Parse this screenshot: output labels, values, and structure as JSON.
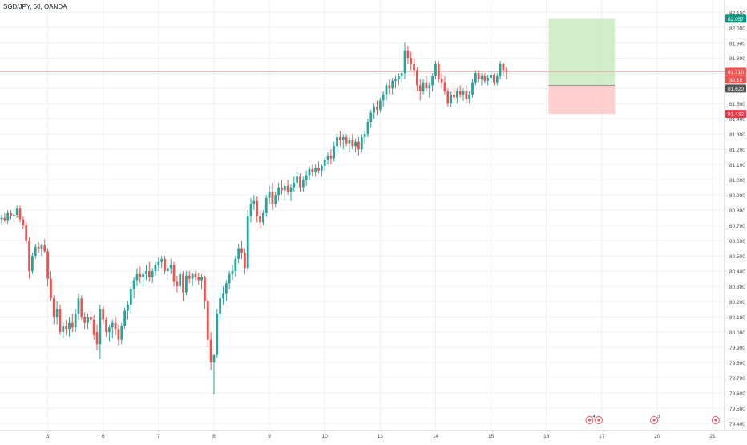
{
  "header": {
    "title": "SGD/JPY, 60, OANDA"
  },
  "colors": {
    "up": "#26a69a",
    "down": "#ef5350",
    "grid": "#eef0f3",
    "axis_text": "#4a4a4a",
    "current_line": "#f3a3a3",
    "target_fill": "#cdebc4",
    "stop_fill": "#ffc9c9",
    "tag_target": "#089981",
    "tag_price": "#ef5350",
    "tag_entry": "#555555",
    "tag_stop": "#f23645",
    "event_marker": "#f7525f"
  },
  "chart_data": {
    "type": "candlestick",
    "title": "SGD/JPY, 60, OANDA",
    "symbol": "SGD/JPY",
    "interval": "60",
    "source": "OANDA",
    "ylim": [
      79.4,
      82.1
    ],
    "yticks": [
      79.4,
      79.5,
      79.6,
      79.7,
      79.8,
      79.9,
      80.0,
      80.1,
      80.2,
      80.3,
      80.4,
      80.5,
      80.6,
      80.7,
      80.8,
      80.9,
      81.0,
      81.1,
      81.2,
      81.3,
      81.4,
      81.5,
      81.6,
      81.7,
      81.8,
      81.9,
      82.0,
      82.1
    ],
    "ytick_labels": [
      "79.400",
      "79.500",
      "79.600",
      "79.700",
      "79.800",
      "79.900",
      "80.000",
      "80.100",
      "80.200",
      "80.300",
      "80.400",
      "80.500",
      "80.600",
      "80.700",
      "80.800",
      "80.900",
      "81.000",
      "81.100",
      "81.200",
      "81.300",
      "81.400",
      "81.500",
      "81.600",
      "81.700",
      "81.800",
      "81.900",
      "82.000",
      "82.100"
    ],
    "xticks": [
      {
        "label": "3",
        "bar": 15
      },
      {
        "label": "6",
        "bar": 33
      },
      {
        "label": "7",
        "bar": 51
      },
      {
        "label": "8",
        "bar": 69
      },
      {
        "label": "9",
        "bar": 87
      },
      {
        "label": "10",
        "bar": 105
      },
      {
        "label": "13",
        "bar": 123
      },
      {
        "label": "14",
        "bar": 141
      },
      {
        "label": "15",
        "bar": 159
      },
      {
        "label": "16",
        "bar": 177
      },
      {
        "label": "17",
        "bar": 195
      },
      {
        "label": "20",
        "bar": 213
      },
      {
        "label": "21",
        "bar": 231
      }
    ],
    "total_slots": 235,
    "candles": [
      [
        80.74,
        80.77,
        80.71,
        80.75
      ],
      [
        80.75,
        80.78,
        80.72,
        80.73
      ],
      [
        80.73,
        80.8,
        80.71,
        80.78
      ],
      [
        80.78,
        80.8,
        80.74,
        80.76
      ],
      [
        80.76,
        80.78,
        80.72,
        80.77
      ],
      [
        80.77,
        80.83,
        80.75,
        80.81
      ],
      [
        80.81,
        80.83,
        80.72,
        80.74
      ],
      [
        80.74,
        80.76,
        80.68,
        80.7
      ],
      [
        80.7,
        80.72,
        80.58,
        80.6
      ],
      [
        80.6,
        80.62,
        80.35,
        80.4
      ],
      [
        80.4,
        80.52,
        80.38,
        80.5
      ],
      [
        80.5,
        80.58,
        80.48,
        80.56
      ],
      [
        80.56,
        80.59,
        80.52,
        80.55
      ],
      [
        80.55,
        80.58,
        80.5,
        80.57
      ],
      [
        80.57,
        80.61,
        80.52,
        80.53
      ],
      [
        80.53,
        80.55,
        80.3,
        80.35
      ],
      [
        80.35,
        80.4,
        80.2,
        80.22
      ],
      [
        80.22,
        80.24,
        80.05,
        80.1
      ],
      [
        80.1,
        80.2,
        80.05,
        80.15
      ],
      [
        80.15,
        80.18,
        79.98,
        80.0
      ],
      [
        80.0,
        80.06,
        79.96,
        80.04
      ],
      [
        80.04,
        80.08,
        79.98,
        80.02
      ],
      [
        80.02,
        80.1,
        79.97,
        80.06
      ],
      [
        80.06,
        80.12,
        80.0,
        80.03
      ],
      [
        80.03,
        80.15,
        80.0,
        80.12
      ],
      [
        80.12,
        80.25,
        80.08,
        80.22
      ],
      [
        80.22,
        80.24,
        80.08,
        80.1
      ],
      [
        80.1,
        80.13,
        80.02,
        80.06
      ],
      [
        80.06,
        80.12,
        80.02,
        80.1
      ],
      [
        80.1,
        80.14,
        80.05,
        80.08
      ],
      [
        80.08,
        80.11,
        79.95,
        79.98
      ],
      [
        80.0,
        80.05,
        79.88,
        79.92
      ],
      [
        79.92,
        80.18,
        79.82,
        80.15
      ],
      [
        80.15,
        80.17,
        80.05,
        80.08
      ],
      [
        80.08,
        80.1,
        79.97,
        80.0
      ],
      [
        80.0,
        80.05,
        79.94,
        80.03
      ],
      [
        80.03,
        80.08,
        79.96,
        80.06
      ],
      [
        80.06,
        80.1,
        79.98,
        80.02
      ],
      [
        80.02,
        80.05,
        79.91,
        79.95
      ],
      [
        79.95,
        80.06,
        79.92,
        80.04
      ],
      [
        80.04,
        80.16,
        80.02,
        80.14
      ],
      [
        80.14,
        80.2,
        80.08,
        80.18
      ],
      [
        80.18,
        80.3,
        80.12,
        80.28
      ],
      [
        80.28,
        80.36,
        80.22,
        80.34
      ],
      [
        80.34,
        80.42,
        80.3,
        80.38
      ],
      [
        80.38,
        80.43,
        80.32,
        80.36
      ],
      [
        80.36,
        80.4,
        80.3,
        80.38
      ],
      [
        80.38,
        80.44,
        80.34,
        80.4
      ],
      [
        80.4,
        80.46,
        80.33,
        80.36
      ],
      [
        80.36,
        80.42,
        80.32,
        80.4
      ],
      [
        80.4,
        80.46,
        80.37,
        80.44
      ],
      [
        80.44,
        80.49,
        80.4,
        80.46
      ],
      [
        80.46,
        80.5,
        80.42,
        80.48
      ],
      [
        80.48,
        80.5,
        80.38,
        80.4
      ],
      [
        80.4,
        80.44,
        80.34,
        80.42
      ],
      [
        80.42,
        80.48,
        80.38,
        80.44
      ],
      [
        80.44,
        80.46,
        80.3,
        80.33
      ],
      [
        80.33,
        80.37,
        80.26,
        80.3
      ],
      [
        80.3,
        80.4,
        80.28,
        80.38
      ],
      [
        80.38,
        80.4,
        80.2,
        80.26
      ],
      [
        80.26,
        80.4,
        80.24,
        80.37
      ],
      [
        80.37,
        80.4,
        80.32,
        80.35
      ],
      [
        80.35,
        80.39,
        80.3,
        80.38
      ],
      [
        80.38,
        80.4,
        80.34,
        80.36
      ],
      [
        80.36,
        80.39,
        80.31,
        80.34
      ],
      [
        80.34,
        80.38,
        80.28,
        80.36
      ],
      [
        80.36,
        80.37,
        80.15,
        80.2
      ],
      [
        80.2,
        80.22,
        79.9,
        79.95
      ],
      [
        79.95,
        80.0,
        79.75,
        79.8
      ],
      [
        79.8,
        79.83,
        79.59,
        79.85
      ],
      [
        79.85,
        80.15,
        79.83,
        80.12
      ],
      [
        80.12,
        80.26,
        80.08,
        80.22
      ],
      [
        80.22,
        80.3,
        80.18,
        80.25
      ],
      [
        80.25,
        80.34,
        80.2,
        80.32
      ],
      [
        80.32,
        80.4,
        80.28,
        80.38
      ],
      [
        80.38,
        80.44,
        80.34,
        80.4
      ],
      [
        80.4,
        80.5,
        80.36,
        80.48
      ],
      [
        80.48,
        80.58,
        80.45,
        80.55
      ],
      [
        80.55,
        80.6,
        80.48,
        80.52
      ],
      [
        80.52,
        80.55,
        80.38,
        80.42
      ],
      [
        80.42,
        80.8,
        80.4,
        80.76
      ],
      [
        80.76,
        80.88,
        80.72,
        80.84
      ],
      [
        80.84,
        80.9,
        80.8,
        80.86
      ],
      [
        80.86,
        80.89,
        80.72,
        80.76
      ],
      [
        80.76,
        80.8,
        80.68,
        80.72
      ],
      [
        80.72,
        80.8,
        80.7,
        80.78
      ],
      [
        80.78,
        80.9,
        80.76,
        80.88
      ],
      [
        80.88,
        80.96,
        80.84,
        80.92
      ],
      [
        80.92,
        80.98,
        80.8,
        80.84
      ],
      [
        80.84,
        80.92,
        80.82,
        80.9
      ],
      [
        80.9,
        80.98,
        80.86,
        80.95
      ],
      [
        80.95,
        81.0,
        80.9,
        80.93
      ],
      [
        80.93,
        80.98,
        80.86,
        80.96
      ],
      [
        80.96,
        81.0,
        80.9,
        80.92
      ],
      [
        80.92,
        80.97,
        80.86,
        80.95
      ],
      [
        80.95,
        81.02,
        80.92,
        80.98
      ],
      [
        80.98,
        81.05,
        80.94,
        81.02
      ],
      [
        81.02,
        81.04,
        80.92,
        80.95
      ],
      [
        80.95,
        81.02,
        80.92,
        81.0
      ],
      [
        81.0,
        81.06,
        80.96,
        81.03
      ],
      [
        81.03,
        81.09,
        81.0,
        81.07
      ],
      [
        81.07,
        81.1,
        81.02,
        81.05
      ],
      [
        81.05,
        81.1,
        81.02,
        81.08
      ],
      [
        81.08,
        81.12,
        81.04,
        81.06
      ],
      [
        81.06,
        81.1,
        81.02,
        81.09
      ],
      [
        81.09,
        81.15,
        81.06,
        81.13
      ],
      [
        81.13,
        81.18,
        81.1,
        81.16
      ],
      [
        81.16,
        81.2,
        81.1,
        81.14
      ],
      [
        81.14,
        81.25,
        81.12,
        81.22
      ],
      [
        81.22,
        81.3,
        81.18,
        81.28
      ],
      [
        81.28,
        81.32,
        81.22,
        81.26
      ],
      [
        81.26,
        81.3,
        81.2,
        81.28
      ],
      [
        81.28,
        81.3,
        81.22,
        81.24
      ],
      [
        81.24,
        81.28,
        81.18,
        81.26
      ],
      [
        81.26,
        81.3,
        81.2,
        81.22
      ],
      [
        81.22,
        81.27,
        81.18,
        81.25
      ],
      [
        81.25,
        81.28,
        81.16,
        81.2
      ],
      [
        81.2,
        81.3,
        81.18,
        81.28
      ],
      [
        81.28,
        81.32,
        81.24,
        81.3
      ],
      [
        81.3,
        81.4,
        81.28,
        81.38
      ],
      [
        81.38,
        81.46,
        81.34,
        81.44
      ],
      [
        81.44,
        81.5,
        81.4,
        81.48
      ],
      [
        81.48,
        81.52,
        81.42,
        81.46
      ],
      [
        81.46,
        81.54,
        81.44,
        81.52
      ],
      [
        81.52,
        81.58,
        81.48,
        81.56
      ],
      [
        81.56,
        81.64,
        81.52,
        81.62
      ],
      [
        81.62,
        81.66,
        81.56,
        81.6
      ],
      [
        81.6,
        81.67,
        81.56,
        81.65
      ],
      [
        81.65,
        81.68,
        81.6,
        81.66
      ],
      [
        81.66,
        81.7,
        81.62,
        81.68
      ],
      [
        81.68,
        81.72,
        81.64,
        81.7
      ],
      [
        81.7,
        81.9,
        81.66,
        81.85
      ],
      [
        81.85,
        81.88,
        81.76,
        81.8
      ],
      [
        81.8,
        81.84,
        81.72,
        81.76
      ],
      [
        81.76,
        81.8,
        81.68,
        81.72
      ],
      [
        81.72,
        81.74,
        81.58,
        81.62
      ],
      [
        81.62,
        81.66,
        81.52,
        81.58
      ],
      [
        81.58,
        81.66,
        81.56,
        81.64
      ],
      [
        81.64,
        81.68,
        81.58,
        81.6
      ],
      [
        81.6,
        81.64,
        81.54,
        81.62
      ],
      [
        81.62,
        81.7,
        81.58,
        81.68
      ],
      [
        81.68,
        81.78,
        81.66,
        81.76
      ],
      [
        81.76,
        81.78,
        81.64,
        81.66
      ],
      [
        81.66,
        81.7,
        81.6,
        81.64
      ],
      [
        81.64,
        81.68,
        81.56,
        81.58
      ],
      [
        81.58,
        81.6,
        81.48,
        81.5
      ],
      [
        81.5,
        81.58,
        81.48,
        81.56
      ],
      [
        81.56,
        81.6,
        81.52,
        81.54
      ],
      [
        81.54,
        81.6,
        81.5,
        81.58
      ],
      [
        81.58,
        81.62,
        81.54,
        81.56
      ],
      [
        81.56,
        81.6,
        81.52,
        81.58
      ],
      [
        81.58,
        81.62,
        81.5,
        81.53
      ],
      [
        81.53,
        81.58,
        81.5,
        81.56
      ],
      [
        81.56,
        81.66,
        81.54,
        81.64
      ],
      [
        81.64,
        81.72,
        81.62,
        81.7
      ],
      [
        81.7,
        81.72,
        81.64,
        81.66
      ],
      [
        81.66,
        81.7,
        81.62,
        81.68
      ],
      [
        81.68,
        81.7,
        81.63,
        81.65
      ],
      [
        81.65,
        81.69,
        81.62,
        81.67
      ],
      [
        81.67,
        81.71,
        81.64,
        81.69
      ],
      [
        81.69,
        81.7,
        81.62,
        81.64
      ],
      [
        81.64,
        81.7,
        81.62,
        81.68
      ],
      [
        81.68,
        81.78,
        81.66,
        81.76
      ],
      [
        81.76,
        81.77,
        81.68,
        81.72
      ],
      [
        81.72,
        81.74,
        81.66,
        81.71
      ]
    ],
    "current_price": 81.71,
    "position": {
      "start_bar": 178,
      "end_bar": 199,
      "target": 82.057,
      "entry": 81.62,
      "stop": 81.432
    },
    "price_tags": {
      "target": "82.057",
      "current": "81.710",
      "countdown": "30:16",
      "entry": "81.620",
      "stop": "81.432"
    },
    "events": [
      {
        "bar": 191,
        "label": "4"
      },
      {
        "bar": 194,
        "label": ""
      },
      {
        "bar": 212,
        "label": "3"
      },
      {
        "bar": 232,
        "label": ""
      }
    ]
  }
}
